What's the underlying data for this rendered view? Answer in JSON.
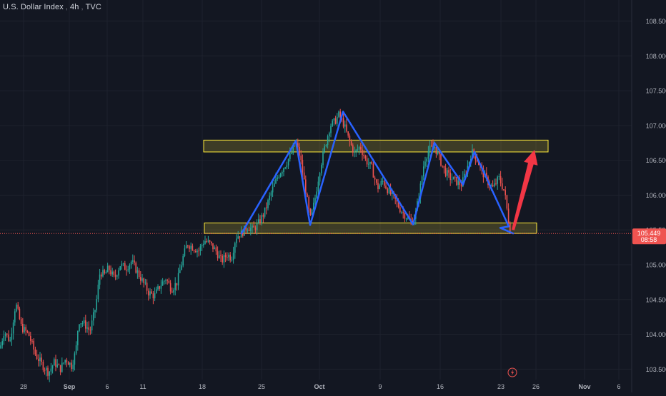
{
  "header": {
    "symbol": "U.S. Dollar Index",
    "timeframe": "4h",
    "source": "TVC"
  },
  "price_tag": {
    "value": "105.449",
    "countdown": "08:58"
  },
  "colors": {
    "background": "#131722",
    "up": "#26a69a",
    "down": "#ef5350",
    "pattern_line": "#2962ff",
    "zone_stroke": "#ffeb3b",
    "zone_fill": "rgba(255,235,59,0.18)",
    "arrow": "#f23645",
    "grid": "#1e222d",
    "axis_text": "#b2b5be"
  },
  "icons": {
    "event_marker": "lightning-icon"
  },
  "chart_data": {
    "type": "candlestick",
    "title": "U.S. Dollar Index, 4h, TVC",
    "xlabel": "",
    "ylabel": "",
    "ylim": [
      103.35,
      108.7
    ],
    "grid": true,
    "x_ticks": [
      "28",
      "Sep",
      "6",
      "11",
      "18",
      "25",
      "Oct",
      "9",
      "16",
      "23",
      "26",
      "Nov",
      "6"
    ],
    "y_ticks": [
      "103.500",
      "104.000",
      "104.500",
      "105.000",
      "105.500",
      "106.000",
      "106.500",
      "107.000",
      "107.500",
      "108.000",
      "108.500"
    ],
    "last_price": 105.449,
    "price_path": [
      [
        0,
        103.8
      ],
      [
        6,
        104.05
      ],
      [
        14,
        103.9
      ],
      [
        22,
        104.45
      ],
      [
        30,
        104.1
      ],
      [
        40,
        104.0
      ],
      [
        50,
        103.7
      ],
      [
        60,
        103.55
      ],
      [
        68,
        103.45
      ],
      [
        76,
        103.6
      ],
      [
        84,
        103.5
      ],
      [
        92,
        103.65
      ],
      [
        100,
        103.55
      ],
      [
        106,
        103.75
      ],
      [
        110,
        104.2
      ],
      [
        118,
        104.15
      ],
      [
        126,
        104.05
      ],
      [
        134,
        104.4
      ],
      [
        140,
        104.9
      ],
      [
        146,
        104.85
      ],
      [
        152,
        104.95
      ],
      [
        160,
        104.8
      ],
      [
        168,
        105.0
      ],
      [
        176,
        104.95
      ],
      [
        184,
        105.05
      ],
      [
        192,
        104.9
      ],
      [
        200,
        104.75
      ],
      [
        208,
        104.6
      ],
      [
        216,
        104.55
      ],
      [
        224,
        104.7
      ],
      [
        232,
        104.8
      ],
      [
        240,
        104.65
      ],
      [
        248,
        104.75
      ],
      [
        256,
        105.1
      ],
      [
        262,
        105.3
      ],
      [
        270,
        105.25
      ],
      [
        278,
        105.2
      ],
      [
        286,
        105.35
      ],
      [
        294,
        105.3
      ],
      [
        302,
        105.2
      ],
      [
        310,
        105.05
      ],
      [
        318,
        105.15
      ],
      [
        324,
        105.1
      ],
      [
        330,
        105.4
      ],
      [
        338,
        105.45
      ],
      [
        346,
        105.55
      ],
      [
        354,
        105.5
      ],
      [
        362,
        105.6
      ],
      [
        370,
        105.75
      ],
      [
        380,
        106.05
      ],
      [
        390,
        106.3
      ],
      [
        400,
        106.45
      ],
      [
        408,
        106.6
      ],
      [
        414,
        106.75
      ],
      [
        420,
        106.55
      ],
      [
        428,
        106.05
      ],
      [
        434,
        105.65
      ],
      [
        440,
        105.9
      ],
      [
        448,
        106.4
      ],
      [
        456,
        106.75
      ],
      [
        462,
        107.0
      ],
      [
        468,
        107.05
      ],
      [
        474,
        107.15
      ],
      [
        480,
        107.05
      ],
      [
        488,
        106.8
      ],
      [
        496,
        106.6
      ],
      [
        504,
        106.7
      ],
      [
        512,
        106.5
      ],
      [
        520,
        106.4
      ],
      [
        528,
        106.1
      ],
      [
        536,
        106.2
      ],
      [
        544,
        106.05
      ],
      [
        552,
        105.95
      ],
      [
        560,
        105.8
      ],
      [
        568,
        105.7
      ],
      [
        576,
        105.6
      ],
      [
        582,
        105.75
      ],
      [
        588,
        106.1
      ],
      [
        594,
        106.5
      ],
      [
        600,
        106.65
      ],
      [
        608,
        106.7
      ],
      [
        614,
        106.55
      ],
      [
        622,
        106.35
      ],
      [
        630,
        106.25
      ],
      [
        638,
        106.2
      ],
      [
        646,
        106.15
      ],
      [
        654,
        106.4
      ],
      [
        660,
        106.62
      ],
      [
        666,
        106.55
      ],
      [
        674,
        106.35
      ],
      [
        682,
        106.2
      ],
      [
        690,
        106.1
      ],
      [
        698,
        106.25
      ],
      [
        706,
        106.05
      ],
      [
        712,
        105.6
      ],
      [
        716,
        105.449
      ]
    ],
    "support_zone": [
      105.45,
      105.6
    ],
    "resistance_zone": [
      106.62,
      106.79
    ],
    "pattern_points": [
      [
        338,
        105.45
      ],
      [
        414,
        106.78
      ],
      [
        434,
        105.57
      ],
      [
        480,
        107.2
      ],
      [
        578,
        105.58
      ],
      [
        608,
        106.75
      ],
      [
        648,
        106.15
      ],
      [
        664,
        106.62
      ],
      [
        712,
        105.55
      ],
      [
        700,
        105.53
      ],
      [
        718,
        105.45
      ]
    ],
    "projection_arrow": {
      "from": [
        718,
        105.5
      ],
      "to": [
        748,
        106.65
      ]
    }
  }
}
